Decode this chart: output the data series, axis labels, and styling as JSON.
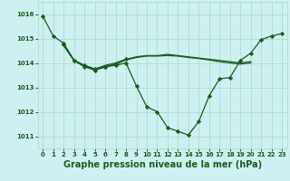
{
  "background_color": "#cff0f0",
  "grid_color": "#aaddcc",
  "line_color": "#1a5c1a",
  "marker_color": "#1a5c1a",
  "xlabel": "Graphe pression niveau de la mer (hPa)",
  "xlabel_fontsize": 7,
  "ylim": [
    1010.5,
    1016.5
  ],
  "xlim": [
    -0.5,
    23.5
  ],
  "yticks": [
    1011,
    1012,
    1013,
    1014,
    1015,
    1016
  ],
  "xticks": [
    0,
    1,
    2,
    3,
    4,
    5,
    6,
    7,
    8,
    9,
    10,
    11,
    12,
    13,
    14,
    15,
    16,
    17,
    18,
    19,
    20,
    21,
    22,
    23
  ],
  "series": [
    {
      "x": [
        0,
        1,
        2,
        3,
        4,
        5,
        6,
        7,
        8,
        9,
        10,
        11,
        12,
        13,
        14,
        15,
        16,
        17,
        18,
        19,
        20,
        21,
        22,
        23
      ],
      "y": [
        1015.9,
        1015.1,
        1014.8,
        1014.1,
        1013.85,
        1013.7,
        1013.85,
        1013.9,
        1014.0,
        1013.05,
        1012.2,
        1012.0,
        1011.35,
        1011.2,
        1011.05,
        1011.6,
        1012.65,
        1013.35,
        1013.4,
        1014.1,
        1014.4,
        1014.95,
        1015.1,
        1015.2
      ],
      "has_markers": true
    },
    {
      "x": [
        2,
        3,
        4,
        5,
        6,
        7,
        8
      ],
      "y": [
        1014.75,
        1014.1,
        1013.9,
        1013.75,
        1013.85,
        1013.95,
        1014.15
      ],
      "has_markers": true
    },
    {
      "x": [
        2,
        3,
        4,
        5,
        6,
        7,
        8,
        9,
        10,
        11,
        12,
        13,
        14,
        15,
        16,
        17,
        18,
        19,
        20
      ],
      "y": [
        1014.75,
        1014.1,
        1013.9,
        1013.75,
        1013.9,
        1014.0,
        1014.15,
        1014.25,
        1014.3,
        1014.3,
        1014.35,
        1014.3,
        1014.25,
        1014.2,
        1014.15,
        1014.1,
        1014.05,
        1014.0,
        1014.05
      ],
      "has_markers": false
    },
    {
      "x": [
        2,
        3,
        4,
        5,
        6,
        7,
        8,
        9,
        10,
        11,
        12,
        13,
        14,
        15,
        16,
        17,
        18,
        19,
        20
      ],
      "y": [
        1014.7,
        1014.1,
        1013.85,
        1013.72,
        1013.82,
        1013.95,
        1014.12,
        1014.22,
        1014.28,
        1014.28,
        1014.3,
        1014.28,
        1014.22,
        1014.18,
        1014.12,
        1014.05,
        1014.0,
        1013.95,
        1014.0
      ],
      "has_markers": false
    }
  ]
}
